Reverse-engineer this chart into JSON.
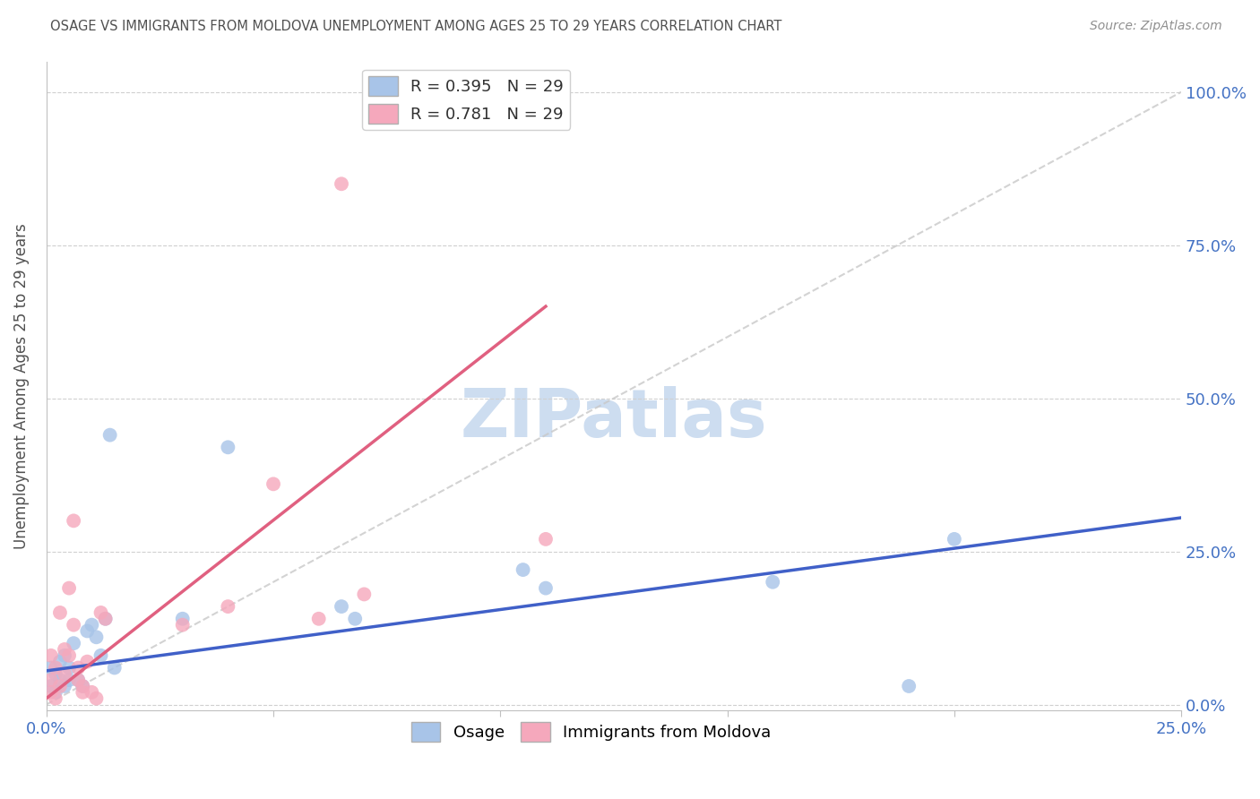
{
  "title": "OSAGE VS IMMIGRANTS FROM MOLDOVA UNEMPLOYMENT AMONG AGES 25 TO 29 YEARS CORRELATION CHART",
  "source": "Source: ZipAtlas.com",
  "ylabel": "Unemployment Among Ages 25 to 29 years",
  "xlim": [
    0.0,
    0.25
  ],
  "ylim": [
    -0.01,
    1.05
  ],
  "ytick_labels": [
    "0.0%",
    "25.0%",
    "50.0%",
    "75.0%",
    "100.0%"
  ],
  "ytick_vals": [
    0.0,
    0.25,
    0.5,
    0.75,
    1.0
  ],
  "legend1_label": "R = 0.395   N = 29",
  "legend2_label": "R = 0.781   N = 29",
  "osage_color": "#a8c4e8",
  "moldova_color": "#f5a8bc",
  "osage_line_color": "#4060c8",
  "moldova_line_color": "#e06080",
  "ref_line_color": "#c8c8c8",
  "axis_label_color": "#4472c4",
  "title_color": "#505050",
  "watermark": "ZIPatlas",
  "watermark_color": "#cdddf0",
  "osage_line_x0": 0.0,
  "osage_line_y0": 0.055,
  "osage_line_x1": 0.25,
  "osage_line_y1": 0.305,
  "moldova_line_x0": 0.0,
  "moldova_line_y0": 0.01,
  "moldova_line_x1": 0.11,
  "moldova_line_y1": 0.65,
  "ref_line_x0": 0.0,
  "ref_line_y0": 0.0,
  "ref_line_x1": 0.25,
  "ref_line_y1": 1.0,
  "osage_x": [
    0.001,
    0.001,
    0.002,
    0.002,
    0.003,
    0.003,
    0.004,
    0.004,
    0.005,
    0.005,
    0.006,
    0.007,
    0.008,
    0.009,
    0.01,
    0.011,
    0.012,
    0.013,
    0.014,
    0.015,
    0.03,
    0.04,
    0.065,
    0.068,
    0.105,
    0.11,
    0.16,
    0.19,
    0.2
  ],
  "osage_y": [
    0.03,
    0.06,
    0.02,
    0.05,
    0.04,
    0.07,
    0.03,
    0.08,
    0.04,
    0.06,
    0.1,
    0.04,
    0.03,
    0.12,
    0.13,
    0.11,
    0.08,
    0.14,
    0.44,
    0.06,
    0.14,
    0.42,
    0.16,
    0.14,
    0.22,
    0.19,
    0.2,
    0.03,
    0.27
  ],
  "moldova_x": [
    0.001,
    0.001,
    0.001,
    0.002,
    0.002,
    0.003,
    0.003,
    0.004,
    0.004,
    0.005,
    0.005,
    0.006,
    0.006,
    0.007,
    0.007,
    0.008,
    0.008,
    0.009,
    0.01,
    0.011,
    0.012,
    0.013,
    0.03,
    0.04,
    0.05,
    0.06,
    0.065,
    0.07,
    0.11
  ],
  "moldova_y": [
    0.02,
    0.04,
    0.08,
    0.01,
    0.06,
    0.03,
    0.15,
    0.05,
    0.09,
    0.08,
    0.19,
    0.3,
    0.13,
    0.06,
    0.04,
    0.03,
    0.02,
    0.07,
    0.02,
    0.01,
    0.15,
    0.14,
    0.13,
    0.16,
    0.36,
    0.14,
    0.85,
    0.18,
    0.27
  ]
}
